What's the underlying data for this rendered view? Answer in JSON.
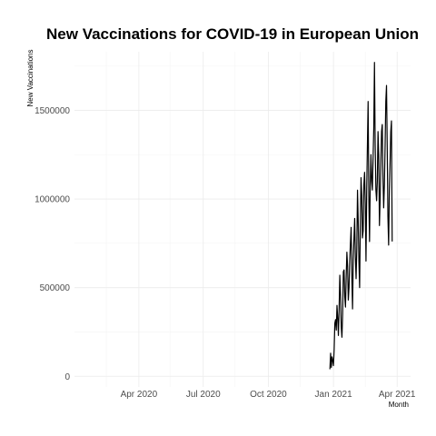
{
  "chart_data": {
    "type": "line",
    "title": "New Vaccinations for COVID-19 in European Union",
    "xlabel": "Month",
    "ylabel": "New Vaccinations",
    "x_ticks": [
      {
        "date": "2020-04-01",
        "label": "Apr 2020"
      },
      {
        "date": "2020-07-01",
        "label": "Jul 2020"
      },
      {
        "date": "2020-10-01",
        "label": "Oct 2020"
      },
      {
        "date": "2021-01-01",
        "label": "Jan 2021"
      },
      {
        "date": "2021-04-01",
        "label": "Apr 2021"
      }
    ],
    "x_minor_ticks": [
      "2020-02-15",
      "2020-05-15",
      "2020-08-15",
      "2020-11-15",
      "2021-02-15"
    ],
    "y_ticks": [
      {
        "value": 0,
        "label": "0"
      },
      {
        "value": 500000,
        "label": "500000"
      },
      {
        "value": 1000000,
        "label": "1000000"
      },
      {
        "value": 1500000,
        "label": "1500000"
      }
    ],
    "y_minor_ticks": [
      250000,
      750000,
      1250000,
      1750000
    ],
    "xlim": [
      "2020-01-01",
      "2021-04-20"
    ],
    "ylim": [
      -60000,
      1830000
    ],
    "grid": true,
    "legend": "none",
    "series": [
      {
        "color": "#000000",
        "x": [
          "2020-12-27",
          "2020-12-28",
          "2020-12-29",
          "2020-12-30",
          "2020-12-31",
          "2021-01-01",
          "2021-01-02",
          "2021-01-03",
          "2021-01-04",
          "2021-01-05",
          "2021-01-06",
          "2021-01-07",
          "2021-01-08",
          "2021-01-09",
          "2021-01-10",
          "2021-01-11",
          "2021-01-12",
          "2021-01-13",
          "2021-01-14",
          "2021-01-15",
          "2021-01-16",
          "2021-01-17",
          "2021-01-18",
          "2021-01-19",
          "2021-01-20",
          "2021-01-21",
          "2021-01-22",
          "2021-01-23",
          "2021-01-24",
          "2021-01-25",
          "2021-01-26",
          "2021-01-27",
          "2021-01-28",
          "2021-01-29",
          "2021-01-30",
          "2021-01-31",
          "2021-02-01",
          "2021-02-02",
          "2021-02-03",
          "2021-02-04",
          "2021-02-05",
          "2021-02-06",
          "2021-02-07",
          "2021-02-08",
          "2021-02-09",
          "2021-02-10",
          "2021-02-11",
          "2021-02-12",
          "2021-02-13",
          "2021-02-14",
          "2021-02-15",
          "2021-02-16",
          "2021-02-17",
          "2021-02-18",
          "2021-02-19",
          "2021-02-20",
          "2021-02-21",
          "2021-02-22",
          "2021-02-23",
          "2021-02-24",
          "2021-02-25",
          "2021-02-26",
          "2021-02-27",
          "2021-02-28",
          "2021-03-01",
          "2021-03-02",
          "2021-03-03",
          "2021-03-04",
          "2021-03-05",
          "2021-03-06",
          "2021-03-07",
          "2021-03-08",
          "2021-03-09",
          "2021-03-10",
          "2021-03-11",
          "2021-03-12",
          "2021-03-13",
          "2021-03-14",
          "2021-03-15",
          "2021-03-16",
          "2021-03-17",
          "2021-03-18",
          "2021-03-19",
          "2021-03-20",
          "2021-03-21",
          "2021-03-22",
          "2021-03-23",
          "2021-03-24",
          "2021-03-25"
        ],
        "y": [
          40000,
          130000,
          50000,
          110000,
          90000,
          60000,
          150000,
          300000,
          320000,
          260000,
          400000,
          330000,
          230000,
          380000,
          570000,
          460000,
          280000,
          220000,
          350000,
          590000,
          600000,
          450000,
          390000,
          560000,
          700000,
          620000,
          430000,
          500000,
          650000,
          750000,
          840000,
          560000,
          380000,
          660000,
          780000,
          890000,
          670000,
          550000,
          720000,
          1050000,
          880000,
          650000,
          500000,
          860000,
          1120000,
          1020000,
          780000,
          820000,
          1080000,
          1150000,
          980000,
          650000,
          1050000,
          1300000,
          1550000,
          1020000,
          760000,
          1080000,
          1250000,
          1100000,
          1050000,
          1230000,
          1400000,
          1770000,
          1300000,
          1050000,
          990000,
          1100000,
          1380000,
          1250000,
          850000,
          1000000,
          1200000,
          1380000,
          1420000,
          1120000,
          950000,
          1080000,
          1300000,
          1550000,
          1640000,
          1300000,
          900000,
          740000,
          1050000,
          1200000,
          1380000,
          1440000,
          760000
        ]
      }
    ]
  }
}
